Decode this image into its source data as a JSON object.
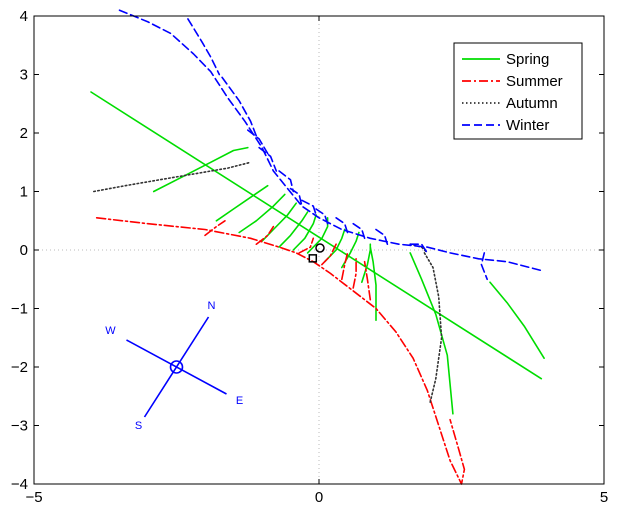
{
  "chart_data": {
    "type": "line",
    "title": "",
    "xlabel": "",
    "ylabel": "",
    "xlim": [
      -5,
      5
    ],
    "ylim": [
      -4,
      4
    ],
    "x_ticks": [
      "−5",
      "0",
      "5"
    ],
    "y_ticks": [
      "4",
      "3",
      "2",
      "1",
      "0",
      "−1",
      "−2",
      "−3",
      "−4"
    ],
    "grid": "dotted lines at x=0 and y=0",
    "legend_position": "top-right",
    "series": [
      {
        "name": "Spring",
        "color": "#00dd00",
        "style": "solid",
        "segments": [
          [
            [
              -4.0,
              2.7
            ],
            [
              3.9,
              -2.2
            ]
          ],
          [
            [
              -2.9,
              1.0
            ],
            [
              -2.4,
              1.25
            ],
            [
              -1.9,
              1.5
            ],
            [
              -1.5,
              1.7
            ],
            [
              -1.25,
              1.75
            ]
          ],
          [
            [
              -1.8,
              0.5
            ],
            [
              -1.5,
              0.7
            ],
            [
              -1.2,
              0.9
            ],
            [
              -0.9,
              1.1
            ]
          ],
          [
            [
              -1.4,
              0.3
            ],
            [
              -1.1,
              0.5
            ],
            [
              -0.8,
              0.75
            ],
            [
              -0.6,
              0.95
            ]
          ],
          [
            [
              -1.0,
              0.15
            ],
            [
              -0.8,
              0.35
            ],
            [
              -0.55,
              0.6
            ],
            [
              -0.4,
              0.8
            ]
          ],
          [
            [
              -0.7,
              0.05
            ],
            [
              -0.5,
              0.25
            ],
            [
              -0.3,
              0.5
            ],
            [
              -0.2,
              0.65
            ]
          ],
          [
            [
              -0.45,
              0.0
            ],
            [
              -0.25,
              0.2
            ],
            [
              -0.1,
              0.45
            ],
            [
              -0.05,
              0.6
            ]
          ],
          [
            [
              -0.2,
              -0.05
            ],
            [
              0.05,
              0.2
            ],
            [
              0.15,
              0.4
            ],
            [
              0.15,
              0.55
            ]
          ],
          [
            [
              0.1,
              -0.2
            ],
            [
              0.3,
              0.0
            ],
            [
              0.4,
              0.2
            ],
            [
              0.45,
              0.35
            ]
          ],
          [
            [
              0.4,
              -0.3
            ],
            [
              0.55,
              -0.05
            ],
            [
              0.65,
              0.15
            ],
            [
              0.7,
              0.3
            ]
          ],
          [
            [
              0.75,
              -0.55
            ],
            [
              0.85,
              -0.25
            ],
            [
              0.9,
              0.0
            ],
            [
              0.9,
              0.1
            ]
          ],
          [
            [
              1.0,
              -1.2
            ],
            [
              1.0,
              -0.6
            ],
            [
              0.95,
              -0.2
            ],
            [
              0.9,
              0.05
            ]
          ],
          [
            [
              1.6,
              -0.05
            ],
            [
              1.8,
              -0.5
            ],
            [
              2.05,
              -1.1
            ],
            [
              2.25,
              -1.8
            ],
            [
              2.35,
              -2.8
            ]
          ],
          [
            [
              3.0,
              -0.55
            ],
            [
              3.3,
              -0.9
            ],
            [
              3.6,
              -1.3
            ],
            [
              3.95,
              -1.85
            ]
          ]
        ]
      },
      {
        "name": "Summer",
        "color": "#ff0000",
        "style": "dashdot",
        "segments": [
          [
            [
              -3.9,
              0.55
            ],
            [
              -3.0,
              0.45
            ],
            [
              -2.0,
              0.35
            ],
            [
              -1.2,
              0.2
            ],
            [
              -0.7,
              0.05
            ],
            [
              -0.4,
              -0.05
            ],
            [
              -0.1,
              -0.2
            ],
            [
              0.2,
              -0.4
            ],
            [
              0.6,
              -0.7
            ],
            [
              1.0,
              -1.0
            ],
            [
              1.35,
              -1.4
            ],
            [
              1.65,
              -1.85
            ],
            [
              1.9,
              -2.4
            ],
            [
              2.1,
              -3.0
            ],
            [
              2.3,
              -3.6
            ],
            [
              2.5,
              -4.0
            ],
            [
              2.55,
              -3.75
            ],
            [
              2.45,
              -3.4
            ],
            [
              2.3,
              -2.9
            ]
          ],
          [
            [
              -2.0,
              0.25
            ],
            [
              -1.8,
              0.4
            ],
            [
              -1.65,
              0.5
            ]
          ],
          [
            [
              -1.1,
              0.1
            ],
            [
              -0.9,
              0.25
            ],
            [
              -0.8,
              0.4
            ]
          ],
          [
            [
              -0.35,
              -0.05
            ],
            [
              -0.15,
              0.05
            ],
            [
              -0.1,
              0.2
            ]
          ],
          [
            [
              0.05,
              -0.25
            ],
            [
              0.2,
              -0.1
            ],
            [
              0.3,
              0.1
            ]
          ],
          [
            [
              0.4,
              -0.5
            ],
            [
              0.45,
              -0.25
            ],
            [
              0.5,
              -0.05
            ]
          ],
          [
            [
              0.6,
              -0.65
            ],
            [
              0.65,
              -0.4
            ],
            [
              0.65,
              -0.15
            ]
          ],
          [
            [
              0.9,
              -0.85
            ],
            [
              0.85,
              -0.5
            ],
            [
              0.8,
              -0.2
            ]
          ]
        ]
      },
      {
        "name": "Autumn",
        "color": "#333333",
        "style": "dotted",
        "segments": [
          [
            [
              -3.95,
              1.0
            ],
            [
              -3.4,
              1.1
            ],
            [
              -2.8,
              1.2
            ],
            [
              -2.2,
              1.3
            ],
            [
              -1.6,
              1.4
            ],
            [
              -1.2,
              1.5
            ]
          ],
          [
            [
              1.85,
              -0.05
            ],
            [
              2.0,
              -0.3
            ],
            [
              2.1,
              -0.8
            ],
            [
              2.15,
              -1.5
            ],
            [
              2.05,
              -2.2
            ],
            [
              1.95,
              -2.6
            ]
          ],
          [
            [
              1.6,
              0.1
            ],
            [
              1.8,
              0.05
            ],
            [
              1.9,
              -0.05
            ]
          ]
        ]
      },
      {
        "name": "Winter",
        "color": "#0000ff",
        "style": "dashed",
        "segments": [
          [
            [
              -3.5,
              4.1
            ],
            [
              -3.0,
              3.9
            ],
            [
              -2.6,
              3.7
            ],
            [
              -2.2,
              3.35
            ],
            [
              -1.9,
              3.05
            ],
            [
              -1.6,
              2.6
            ],
            [
              -1.3,
              2.2
            ],
            [
              -1.0,
              1.75
            ],
            [
              -0.8,
              1.35
            ],
            [
              -0.55,
              1.05
            ],
            [
              -0.3,
              0.75
            ],
            [
              0.0,
              0.55
            ],
            [
              0.4,
              0.35
            ],
            [
              0.9,
              0.2
            ],
            [
              1.4,
              0.1
            ],
            [
              1.9,
              0.05
            ],
            [
              2.3,
              -0.05
            ],
            [
              2.8,
              -0.15
            ],
            [
              3.3,
              -0.2
            ],
            [
              3.9,
              -0.35
            ]
          ],
          [
            [
              -2.3,
              3.95
            ],
            [
              -2.05,
              3.55
            ],
            [
              -1.9,
              3.3
            ],
            [
              -1.75,
              3.0
            ]
          ],
          [
            [
              -1.7,
              2.95
            ],
            [
              -1.4,
              2.55
            ],
            [
              -1.2,
              2.2
            ],
            [
              -1.1,
              1.95
            ]
          ],
          [
            [
              -1.25,
              2.05
            ],
            [
              -1.05,
              1.9
            ],
            [
              -0.9,
              1.65
            ]
          ],
          [
            [
              -1.05,
              1.75
            ],
            [
              -0.85,
              1.6
            ],
            [
              -0.75,
              1.35
            ]
          ],
          [
            [
              -0.7,
              1.35
            ],
            [
              -0.5,
              1.2
            ],
            [
              -0.45,
              1.0
            ]
          ],
          [
            [
              -0.5,
              1.05
            ],
            [
              -0.35,
              0.95
            ],
            [
              -0.3,
              0.75
            ]
          ],
          [
            [
              -0.3,
              0.85
            ],
            [
              -0.1,
              0.75
            ],
            [
              -0.05,
              0.6
            ]
          ],
          [
            [
              -0.05,
              0.7
            ],
            [
              0.1,
              0.6
            ],
            [
              0.15,
              0.45
            ]
          ],
          [
            [
              0.3,
              0.55
            ],
            [
              0.45,
              0.45
            ],
            [
              0.5,
              0.3
            ]
          ],
          [
            [
              0.6,
              0.45
            ],
            [
              0.75,
              0.35
            ],
            [
              0.8,
              0.2
            ]
          ],
          [
            [
              1.0,
              0.35
            ],
            [
              1.15,
              0.25
            ],
            [
              1.2,
              0.1
            ]
          ],
          [
            [
              1.6,
              0.1
            ],
            [
              1.8,
              0.1
            ],
            [
              1.9,
              -0.05
            ]
          ],
          [
            [
              2.9,
              -0.05
            ],
            [
              2.85,
              -0.25
            ],
            [
              2.95,
              -0.5
            ]
          ]
        ]
      }
    ],
    "markers": [
      {
        "shape": "circle",
        "x": 0.0,
        "y": 0.0
      },
      {
        "shape": "square",
        "x": -0.1,
        "y": -0.1
      }
    ],
    "compass": {
      "center": [
        -2.5,
        -2.0
      ],
      "labels": [
        "N",
        "E",
        "S",
        "W"
      ],
      "color": "#0000ff"
    }
  }
}
